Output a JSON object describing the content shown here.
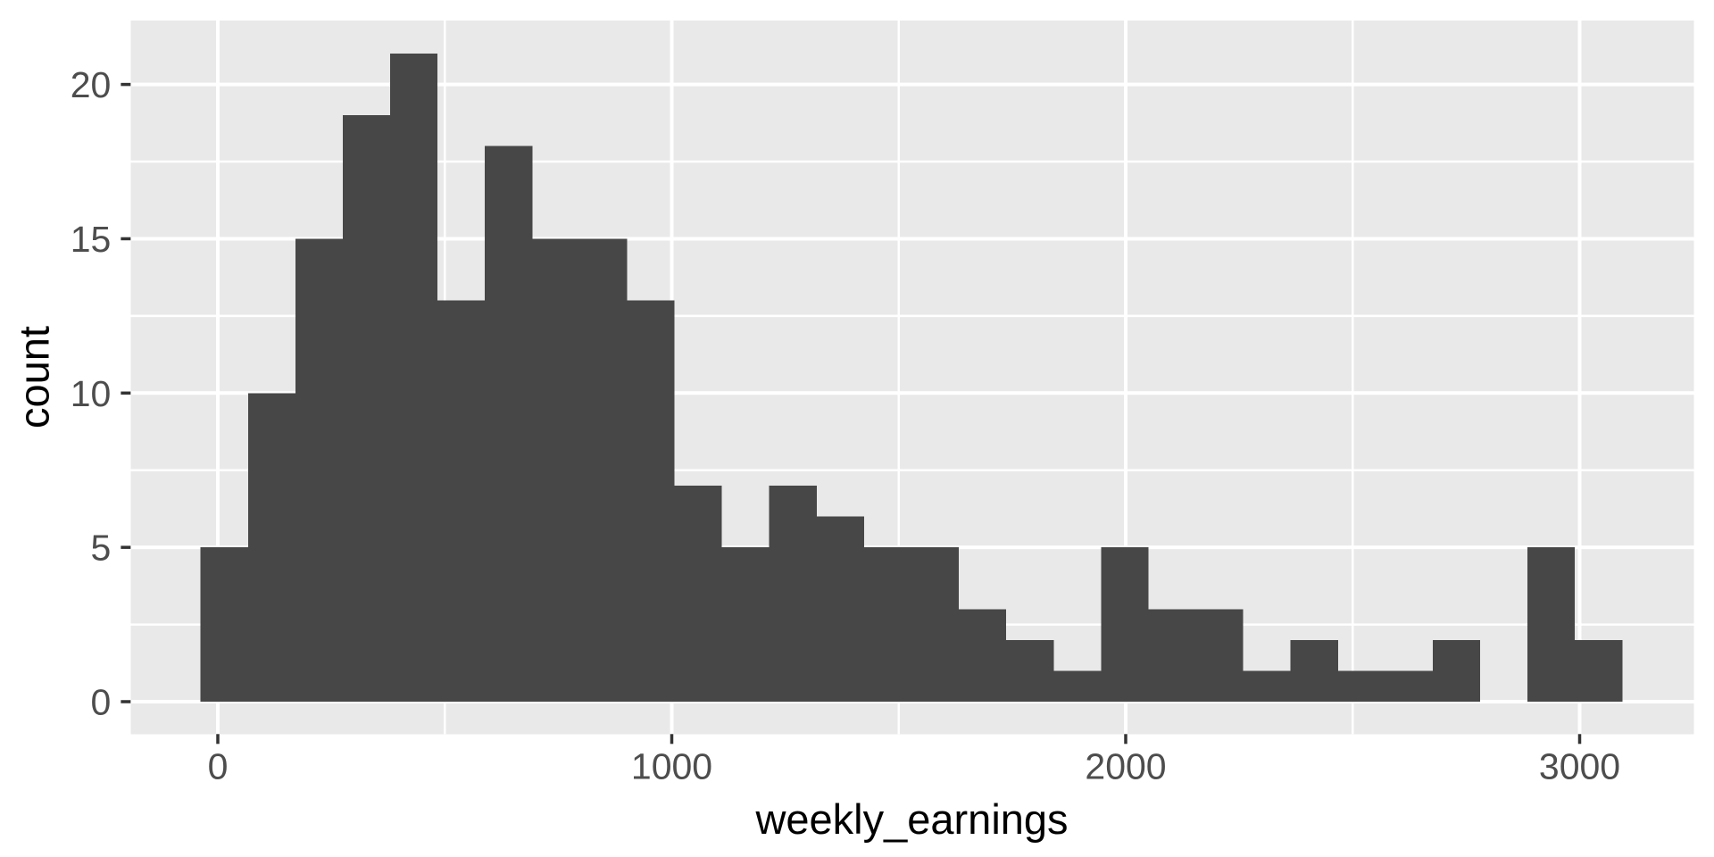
{
  "chart_data": {
    "type": "bar",
    "subtype": "histogram",
    "title": "",
    "xlabel": "weekly_earnings",
    "ylabel": "count",
    "x_ticks": [
      0,
      1000,
      2000,
      3000
    ],
    "y_ticks": [
      0,
      5,
      10,
      15,
      20
    ],
    "x_minor_gridlines": [
      500,
      1500,
      2500
    ],
    "y_minor_gridlines": [
      2.5,
      7.5,
      12.5,
      17.5
    ],
    "xlim": [
      -192,
      3252
    ],
    "ylim": [
      -1.05,
      22.07
    ],
    "grid": "major-and-minor-white-on-grey-panel",
    "legend": null,
    "bins": {
      "first_start": -38,
      "width": 104.4,
      "counts": [
        5,
        10,
        15,
        19,
        21,
        13,
        18,
        15,
        15,
        13,
        7,
        5,
        7,
        6,
        5,
        5,
        3,
        2,
        1,
        5,
        3,
        3,
        1,
        2,
        1,
        1,
        2,
        0,
        5,
        2
      ]
    },
    "colors": {
      "bar_fill": "#474747",
      "panel_bg": "#E9E9E9",
      "gridline": "#FFFFFF",
      "tick_mark": "#333333",
      "tick_label": "#4D4D4D",
      "axis_title": "#000000",
      "background": "#FFFFFF"
    }
  }
}
